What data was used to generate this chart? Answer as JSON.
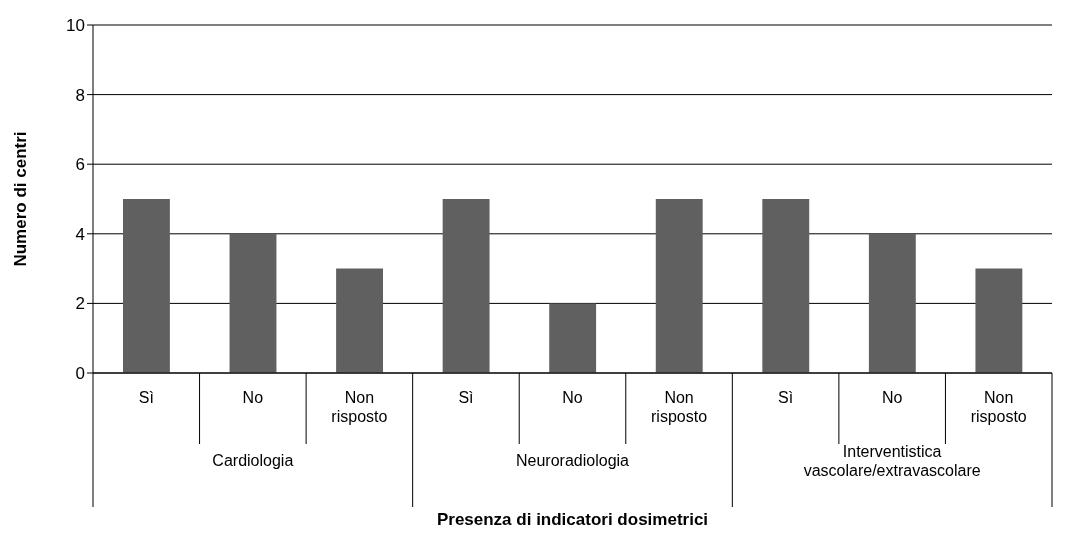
{
  "chart_data": {
    "type": "bar",
    "xlabel": "Presenza di indicatori dosimetrici",
    "ylabel": "Numero di centri",
    "categories": [
      "Sì",
      "No",
      "Non risposto",
      "Sì",
      "No",
      "Non risposto",
      "Sì",
      "No",
      "Non risposto"
    ],
    "values": [
      5,
      4,
      3,
      5,
      2,
      5,
      5,
      4,
      3
    ],
    "color": "#606060",
    "annotations": [
      "Cardiologia",
      "Neuroradiologia",
      "Interventistica vascolare/extravascolare"
    ],
    "ylim": [
      0,
      10
    ],
    "yticks": [
      0,
      2,
      4,
      6,
      8,
      10
    ],
    "grid": "y",
    "legend": false
  }
}
